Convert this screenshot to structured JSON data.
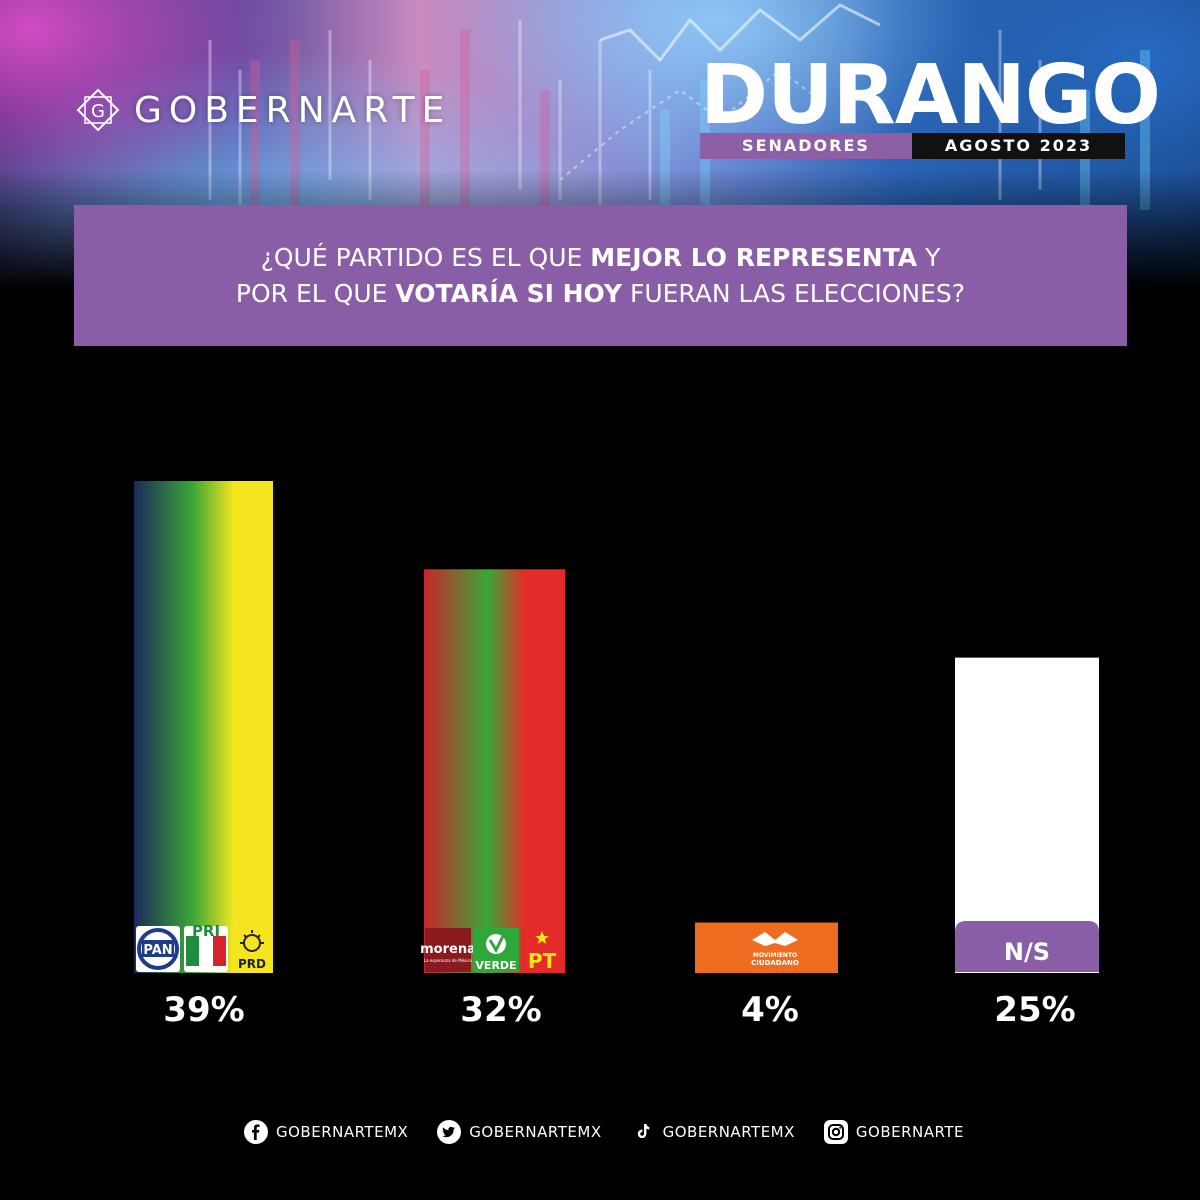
{
  "brand": {
    "name": "GOBERNARTE"
  },
  "header": {
    "title": "DURANGO",
    "tag_left": "SENADORES",
    "tag_right": "AGOSTO 2023"
  },
  "question": {
    "line1_prefix": "¿QUÉ PARTIDO ES EL QUE ",
    "line1_bold": "MEJOR LO REPRESENTA",
    "line1_suffix": " Y",
    "line2_prefix": "POR EL QUE ",
    "line2_bold": "VOTARÍA SI HOY",
    "line2_suffix": " FUERAN LAS ELECCIONES?"
  },
  "chart_data": {
    "type": "bar",
    "title": "",
    "xlabel": "",
    "ylabel": "",
    "ylim": [
      0,
      39
    ],
    "grid": false,
    "categories": [
      "PAN PRI PRD",
      "morena VERDE PT",
      "MOVIMIENTO CIUDADANO",
      "N/S"
    ],
    "values": [
      39,
      32,
      4,
      25
    ],
    "value_labels": [
      "39%",
      "32%",
      "4%",
      "25%"
    ],
    "bar_colors": [
      [
        "#1c2a5a",
        "#3aa637",
        "#f5e51f"
      ],
      [
        "#c8262c",
        "#3aa637",
        "#e52a2a"
      ],
      [
        "#ee6c1f"
      ],
      [
        "#ffffff"
      ]
    ],
    "logos": [
      [
        "PAN",
        "PRI",
        "PRD"
      ],
      [
        "morena",
        "VERDE",
        "PT"
      ],
      [
        "MOVIMIENTO CIUDADANO"
      ],
      [
        "N/S"
      ]
    ],
    "logo_small_texts": {
      "morena_tag": "La esperanza de México",
      "mc_line1": "MOVIMIENTO",
      "mc_line2": "CIUDADANO"
    },
    "ns_color": "#8a5ea7"
  },
  "footer": {
    "items": [
      {
        "icon": "facebook-icon",
        "label": "GOBERNARTEMX"
      },
      {
        "icon": "twitter-icon",
        "label": "GOBERNARTEMX"
      },
      {
        "icon": "tiktok-icon",
        "label": "GOBERNARTEMX"
      },
      {
        "icon": "instagram-icon",
        "label": "GOBERNARTE"
      }
    ]
  },
  "colors": {
    "accent_purple": "#8a5ea7",
    "background": "#000000"
  }
}
